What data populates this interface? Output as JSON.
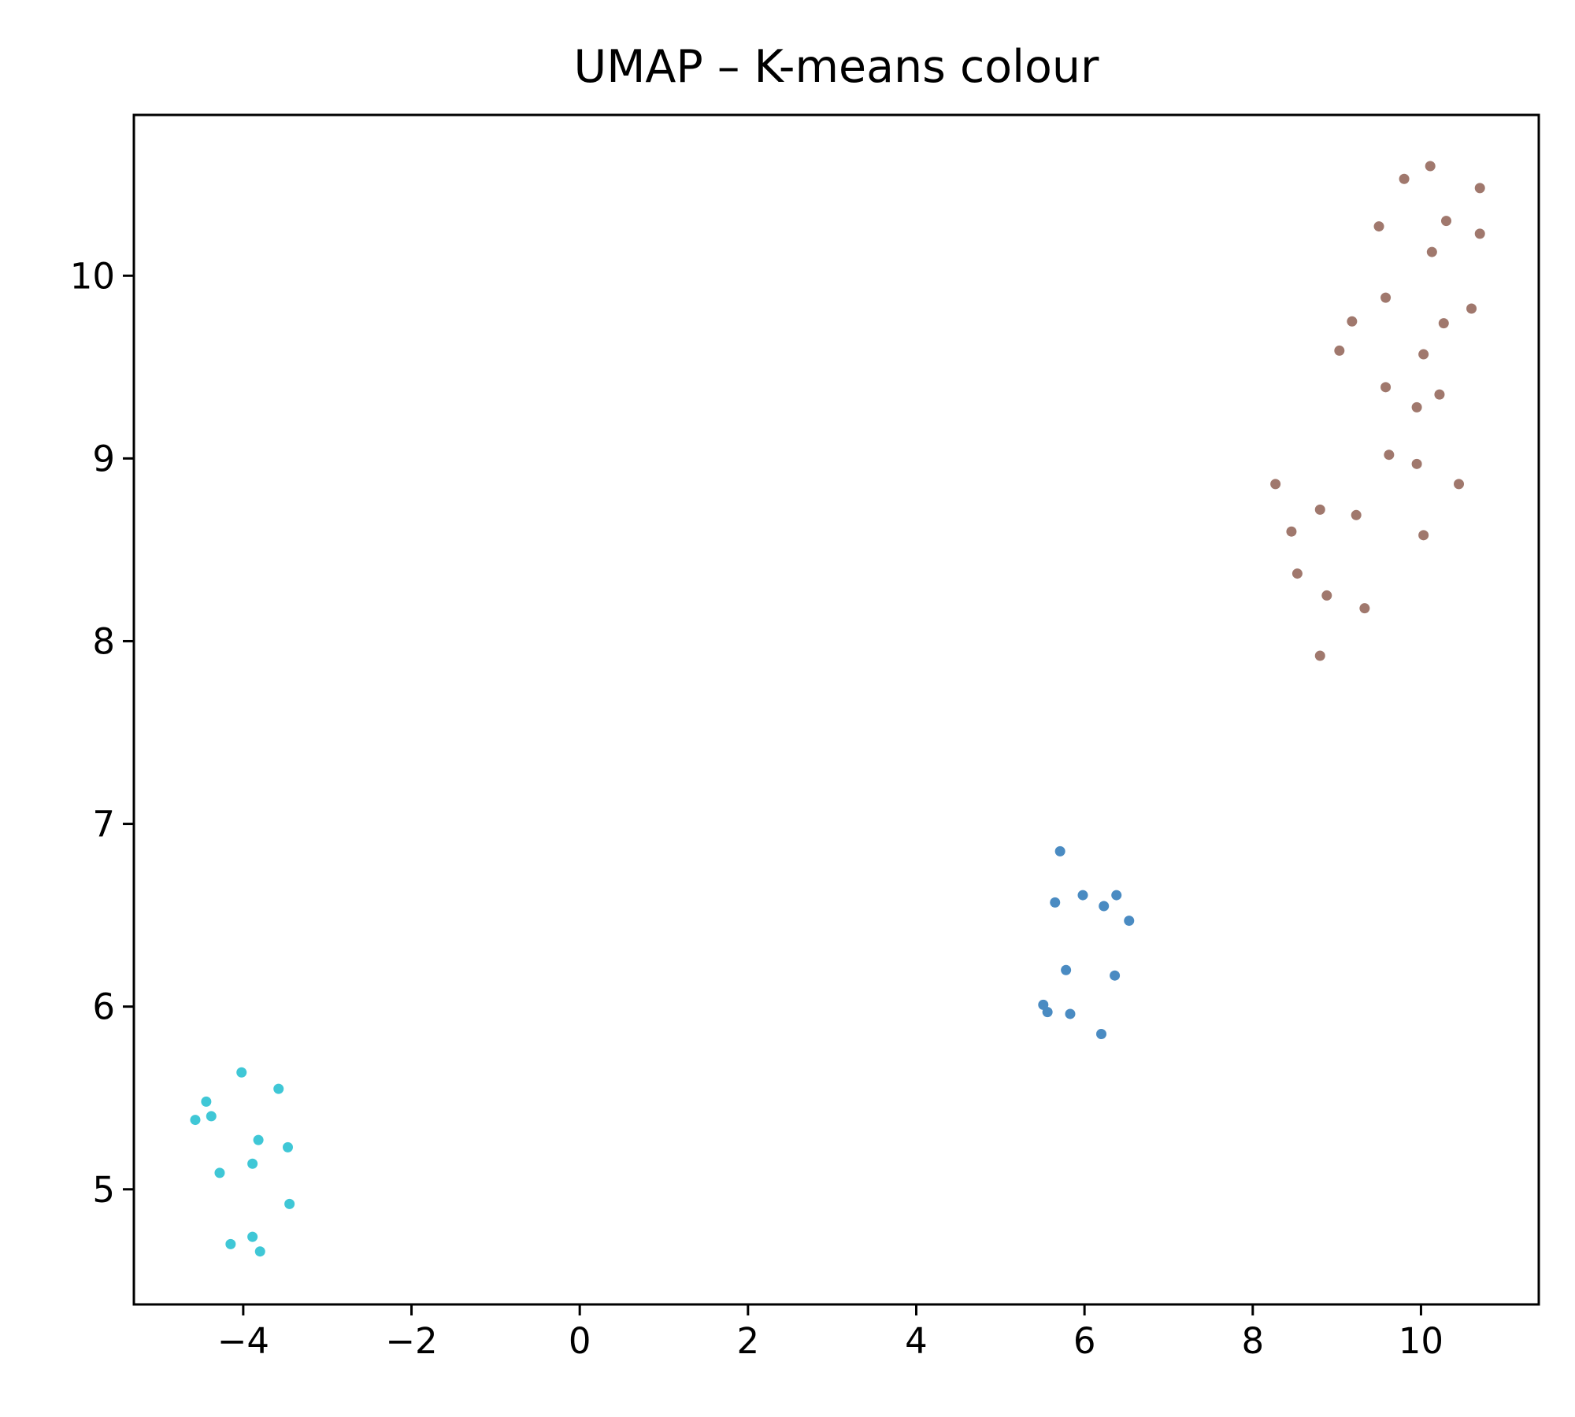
{
  "chart_data": {
    "type": "scatter",
    "title": "UMAP – K-means colour",
    "xlabel": "",
    "ylabel": "",
    "xlim": [
      -5.3,
      11.4
    ],
    "ylim": [
      4.37,
      10.88
    ],
    "xticks": [
      -4,
      -2,
      0,
      2,
      4,
      6,
      8,
      10
    ],
    "yticks": [
      5,
      6,
      7,
      8,
      9,
      10
    ],
    "grid": false,
    "legend": "none",
    "series": [
      {
        "color": "#3fc7d6",
        "points": [
          [
            -4.02,
            5.64
          ],
          [
            -3.58,
            5.55
          ],
          [
            -4.44,
            5.48
          ],
          [
            -4.57,
            5.38
          ],
          [
            -4.38,
            5.4
          ],
          [
            -3.82,
            5.27
          ],
          [
            -3.47,
            5.23
          ],
          [
            -3.89,
            5.14
          ],
          [
            -4.28,
            5.09
          ],
          [
            -3.45,
            4.92
          ],
          [
            -3.89,
            4.74
          ],
          [
            -4.15,
            4.7
          ],
          [
            -3.8,
            4.66
          ]
        ]
      },
      {
        "color": "#4a8bc2",
        "points": [
          [
            5.71,
            6.85
          ],
          [
            5.65,
            6.57
          ],
          [
            5.98,
            6.61
          ],
          [
            6.23,
            6.55
          ],
          [
            6.38,
            6.61
          ],
          [
            6.53,
            6.47
          ],
          [
            5.78,
            6.2
          ],
          [
            6.36,
            6.17
          ],
          [
            5.51,
            6.01
          ],
          [
            5.56,
            5.97
          ],
          [
            5.83,
            5.96
          ],
          [
            6.2,
            5.85
          ]
        ]
      },
      {
        "color": "#a0786d",
        "points": [
          [
            10.11,
            10.6
          ],
          [
            9.8,
            10.53
          ],
          [
            10.7,
            10.48
          ],
          [
            9.5,
            10.27
          ],
          [
            10.3,
            10.3
          ],
          [
            10.7,
            10.23
          ],
          [
            10.13,
            10.13
          ],
          [
            9.58,
            9.88
          ],
          [
            10.6,
            9.82
          ],
          [
            9.18,
            9.75
          ],
          [
            10.27,
            9.74
          ],
          [
            9.03,
            9.59
          ],
          [
            10.03,
            9.57
          ],
          [
            9.58,
            9.39
          ],
          [
            10.22,
            9.35
          ],
          [
            9.95,
            9.28
          ],
          [
            9.62,
            9.02
          ],
          [
            9.95,
            8.97
          ],
          [
            8.27,
            8.86
          ],
          [
            10.45,
            8.86
          ],
          [
            8.8,
            8.72
          ],
          [
            9.23,
            8.69
          ],
          [
            8.46,
            8.6
          ],
          [
            10.03,
            8.58
          ],
          [
            8.53,
            8.37
          ],
          [
            8.88,
            8.25
          ],
          [
            9.33,
            8.18
          ],
          [
            8.8,
            7.92
          ]
        ]
      }
    ]
  }
}
